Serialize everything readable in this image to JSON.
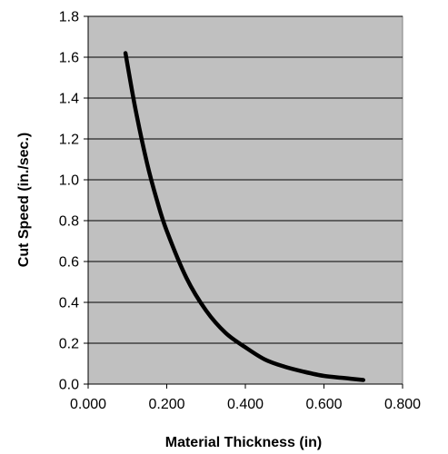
{
  "chart_data": {
    "type": "line",
    "title": "",
    "xlabel": "Material Thickness (in)",
    "ylabel": "Cut Speed (in./sec.)",
    "xlim": [
      0,
      0.8
    ],
    "ylim": [
      0,
      1.8
    ],
    "x_ticks": [
      "0.000",
      "0.200",
      "0.400",
      "0.600",
      "0.800"
    ],
    "y_ticks": [
      "0.0",
      "0.2",
      "0.4",
      "0.6",
      "0.8",
      "1.0",
      "1.2",
      "1.4",
      "1.6",
      "1.8"
    ],
    "grid": "horizontal",
    "plot_background": "#c0c0c0",
    "line_color": "#000000",
    "series": [
      {
        "x": [
          0.095,
          0.12,
          0.15,
          0.175,
          0.2,
          0.25,
          0.3,
          0.35,
          0.4,
          0.45,
          0.5,
          0.55,
          0.6,
          0.65,
          0.7
        ],
        "y": [
          1.62,
          1.35,
          1.08,
          0.9,
          0.75,
          0.52,
          0.36,
          0.25,
          0.18,
          0.12,
          0.085,
          0.06,
          0.04,
          0.03,
          0.02
        ]
      }
    ]
  }
}
